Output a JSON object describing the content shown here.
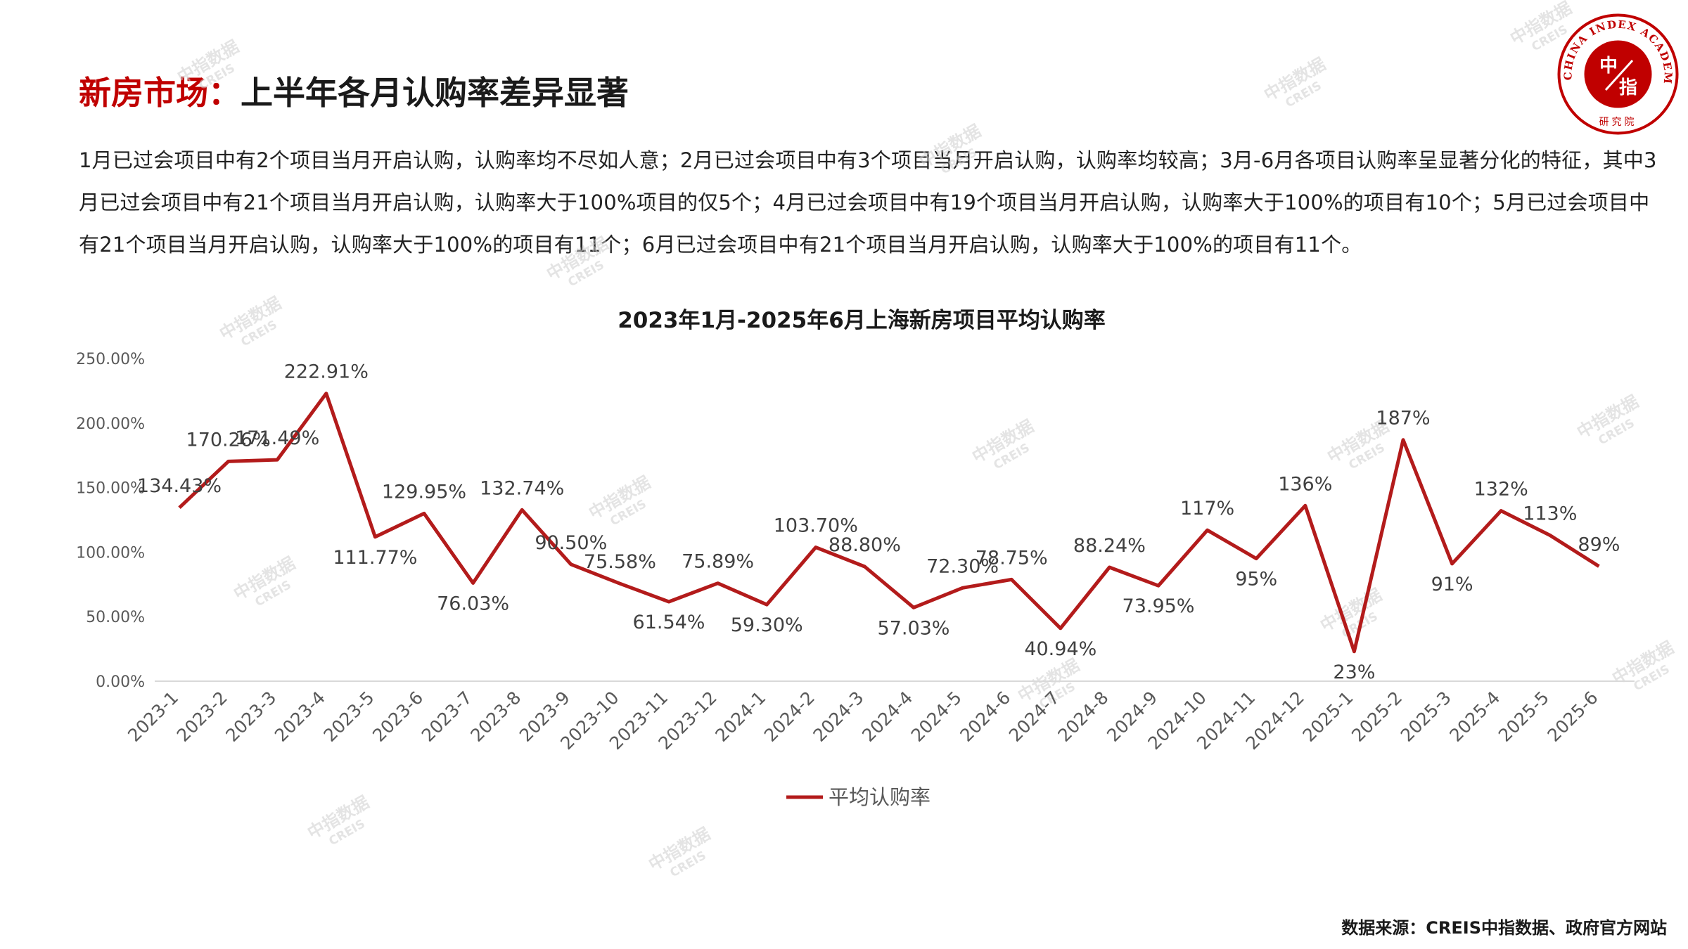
{
  "header": {
    "title_red": "新房市场：",
    "title_black": "上半年各月认购率差异显著"
  },
  "paragraph": "1月已过会项目中有2个项目当月开启认购，认购率均不尽如人意；2月已过会项目中有3个项目当月开启认购，认购率均较高；3月-6月各项目认购率呈显著分化的特征，其中3月已过会项目中有21个项目当月开启认购，认购率大于100%项目的仅5个；4月已过会项目中有19个项目当月开启认购，认购率大于100%的项目有10个；5月已过会项目中有21个项目当月开启认购，认购率大于100%的项目有11个；6月已过会项目中有21个项目当月开启认购，认购率大于100%的项目有11个。",
  "seal": {
    "arc_text": "CHINA INDEX ACADEMY",
    "center_top": "中",
    "center_bottom": "指",
    "bottom_text": "研究院"
  },
  "watermark": {
    "cn": "中指数据",
    "en": "CREIS"
  },
  "source": "数据来源：CREIS中指数据、政府官方网站",
  "colors": {
    "accent": "#c00000",
    "line": "#b31b1b",
    "axis_text": "#595959",
    "gridline": "#d9d9d9"
  },
  "chart_data": {
    "type": "line",
    "title": "2023年1月-2025年6月上海新房项目平均认购率",
    "xlabel": "",
    "ylabel": "",
    "ylim": [
      0,
      250
    ],
    "yticks": [
      "0.00%",
      "50.00%",
      "100.00%",
      "150.00%",
      "200.00%",
      "250.00%"
    ],
    "grid": false,
    "legend_position": "bottom",
    "categories": [
      "2023-1",
      "2023-2",
      "2023-3",
      "2023-4",
      "2023-5",
      "2023-6",
      "2023-7",
      "2023-8",
      "2023-9",
      "2023-10",
      "2023-11",
      "2023-12",
      "2024-1",
      "2024-2",
      "2024-3",
      "2024-4",
      "2024-5",
      "2024-6",
      "2024-7",
      "2024-8",
      "2024-9",
      "2024-10",
      "2024-11",
      "2024-12",
      "2025-1",
      "2025-2",
      "2025-3",
      "2025-4",
      "2025-5",
      "2025-6"
    ],
    "series": [
      {
        "name": "平均认购率",
        "values": [
          134.43,
          170.26,
          171.49,
          222.91,
          111.77,
          129.95,
          76.03,
          132.74,
          90.5,
          75.58,
          61.54,
          75.89,
          59.3,
          103.7,
          88.8,
          57.03,
          72.3,
          78.75,
          40.94,
          88.24,
          73.95,
          117,
          95,
          136,
          23,
          187,
          91,
          132,
          113,
          89
        ],
        "labels": [
          "134.43%",
          "170.26%",
          "171.49%",
          "222.91%",
          "111.77%",
          "129.95%",
          "76.03%",
          "132.74%",
          "90.50%",
          "75.58%",
          "61.54%",
          "75.89%",
          "59.30%",
          "103.70%",
          "88.80%",
          "57.03%",
          "72.30%",
          "78.75%",
          "40.94%",
          "88.24%",
          "73.95%",
          "117%",
          "95%",
          "136%",
          "23%",
          "187%",
          "91%",
          "132%",
          "113%",
          "89%"
        ]
      }
    ]
  }
}
